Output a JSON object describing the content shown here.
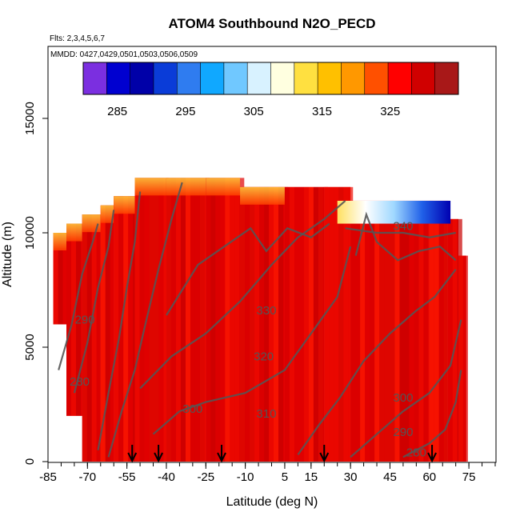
{
  "chart_data": {
    "type": "heatmap",
    "title": "ATOM4 Southbound N2O_PECD",
    "annotations": [
      "Flts: 2,3,4,5,6,7",
      "MMDD: 0427,0429,0501,0503,0506,0509"
    ],
    "xlabel": "Latitude (deg N)",
    "ylabel": "Altitude (m)",
    "xlim": [
      -85,
      85
    ],
    "ylim": [
      0,
      17500
    ],
    "x_ticks": [
      -85,
      -70,
      -55,
      -40,
      -25,
      -10,
      5,
      15,
      30,
      45,
      60,
      75
    ],
    "y_ticks": [
      0,
      5000,
      10000,
      15000
    ],
    "grid": false,
    "colorbar": {
      "ticks": [
        285,
        295,
        305,
        315,
        325
      ],
      "range": [
        280,
        335
      ],
      "colors": [
        "#7b2fe0",
        "#0000d0",
        "#0000a8",
        "#0a3cd8",
        "#2f7cf0",
        "#10a8ff",
        "#70c8ff",
        "#d8f2ff",
        "#ffffe0",
        "#ffe040",
        "#ffc000",
        "#ff9800",
        "#ff5000",
        "#ff0000",
        "#d00000",
        "#a81818"
      ]
    },
    "contours": [
      {
        "level": "280",
        "label_lat": -73,
        "label_alt": 3500
      },
      {
        "level": "280",
        "label_lat": 55,
        "label_alt": 400
      },
      {
        "level": "290",
        "label_lat": -71,
        "label_alt": 6200
      },
      {
        "level": "290",
        "label_lat": 50,
        "label_alt": 1300
      },
      {
        "level": "300",
        "label_lat": -30,
        "label_alt": 2300
      },
      {
        "level": "300",
        "label_lat": 50,
        "label_alt": 2800
      },
      {
        "level": "310",
        "label_lat": -2,
        "label_alt": 2100
      },
      {
        "level": "320",
        "label_lat": -3,
        "label_alt": 4600
      },
      {
        "level": "330",
        "label_lat": -2,
        "label_alt": 6600
      },
      {
        "level": "340",
        "label_lat": 50,
        "label_alt": 10300
      }
    ],
    "flight_markers_lat": [
      -53,
      -43,
      -19,
      20,
      61
    ],
    "data_columns": [
      {
        "lat": -83,
        "alt_min": 6000,
        "alt_max": 10000
      },
      {
        "lat": -78,
        "alt_min": 2000,
        "alt_max": 10400
      },
      {
        "lat": -72,
        "alt_min": 0,
        "alt_max": 10800
      },
      {
        "lat": -65,
        "alt_min": 0,
        "alt_max": 11200
      },
      {
        "lat": -60,
        "alt_min": 0,
        "alt_max": 11600
      },
      {
        "lat": -52,
        "alt_min": 0,
        "alt_max": 12400
      },
      {
        "lat": -40,
        "alt_min": 0,
        "alt_max": 12400
      },
      {
        "lat": -25,
        "alt_min": 0,
        "alt_max": 12400
      },
      {
        "lat": -12,
        "alt_min": 0,
        "alt_max": 12000
      },
      {
        "lat": 5,
        "alt_min": 0,
        "alt_max": 12000
      },
      {
        "lat": 20,
        "alt_min": 0,
        "alt_max": 12000
      },
      {
        "lat": 30,
        "alt_min": 0,
        "alt_max": 11400
      },
      {
        "lat": 45,
        "alt_min": 0,
        "alt_max": 11400
      },
      {
        "lat": 60,
        "alt_min": 0,
        "alt_max": 11400
      },
      {
        "lat": 67,
        "alt_min": 0,
        "alt_max": 10600
      },
      {
        "lat": 71,
        "alt_min": 0,
        "alt_max": 9000
      }
    ],
    "upper_layer": [
      {
        "lat_from": 25,
        "lat_to": 68,
        "alt_from": 10400,
        "alt_to": 11400,
        "gradient": [
          "#ffe060",
          "#ffffff",
          "#a0d8ff",
          "#2060e8",
          "#0000b0"
        ]
      }
    ]
  }
}
